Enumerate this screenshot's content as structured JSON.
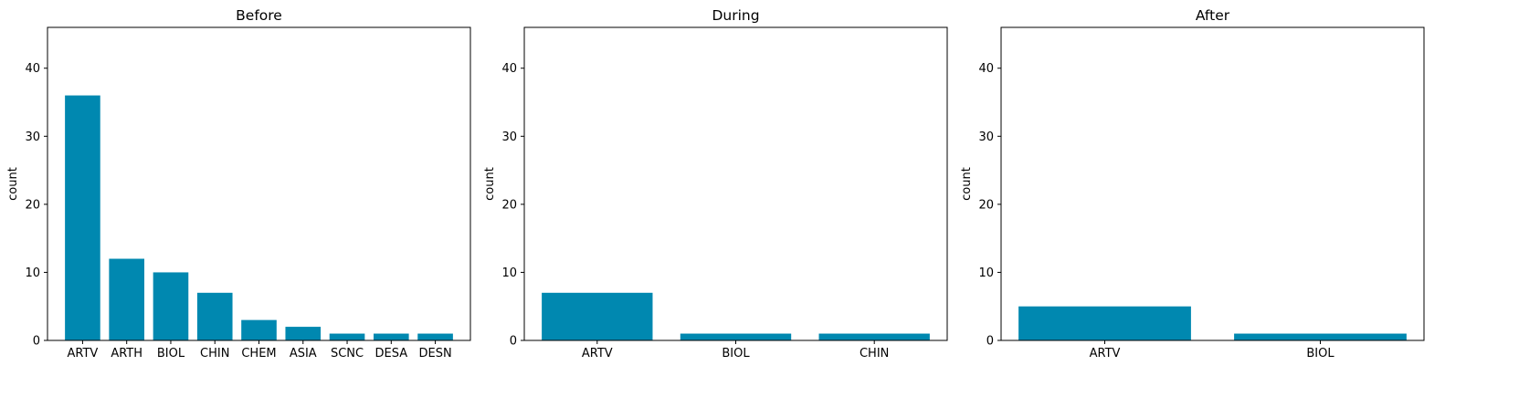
{
  "chart_data": [
    {
      "type": "bar",
      "title": "Before",
      "xlabel": "",
      "ylabel": "count",
      "ylim": [
        0,
        46
      ],
      "yticks": [
        0,
        10,
        20,
        30,
        40
      ],
      "grid": false,
      "bar_color": "#0088B0",
      "categories": [
        "ARTV",
        "ARTH",
        "BIOL",
        "CHIN",
        "CHEM",
        "ASIA",
        "SCNC",
        "DESA",
        "DESN"
      ],
      "values": [
        36,
        12,
        10,
        7,
        3,
        2,
        1,
        1,
        1
      ]
    },
    {
      "type": "bar",
      "title": "During",
      "xlabel": "",
      "ylabel": "count",
      "ylim": [
        0,
        46
      ],
      "yticks": [
        0,
        10,
        20,
        30,
        40
      ],
      "grid": false,
      "bar_color": "#0088B0",
      "categories": [
        "ARTV",
        "BIOL",
        "CHIN"
      ],
      "values": [
        7,
        1,
        1
      ]
    },
    {
      "type": "bar",
      "title": "After",
      "xlabel": "",
      "ylabel": "count",
      "ylim": [
        0,
        46
      ],
      "yticks": [
        0,
        10,
        20,
        30,
        40
      ],
      "grid": false,
      "bar_color": "#0088B0",
      "categories": [
        "ARTV",
        "BIOL"
      ],
      "values": [
        5,
        1
      ]
    }
  ]
}
